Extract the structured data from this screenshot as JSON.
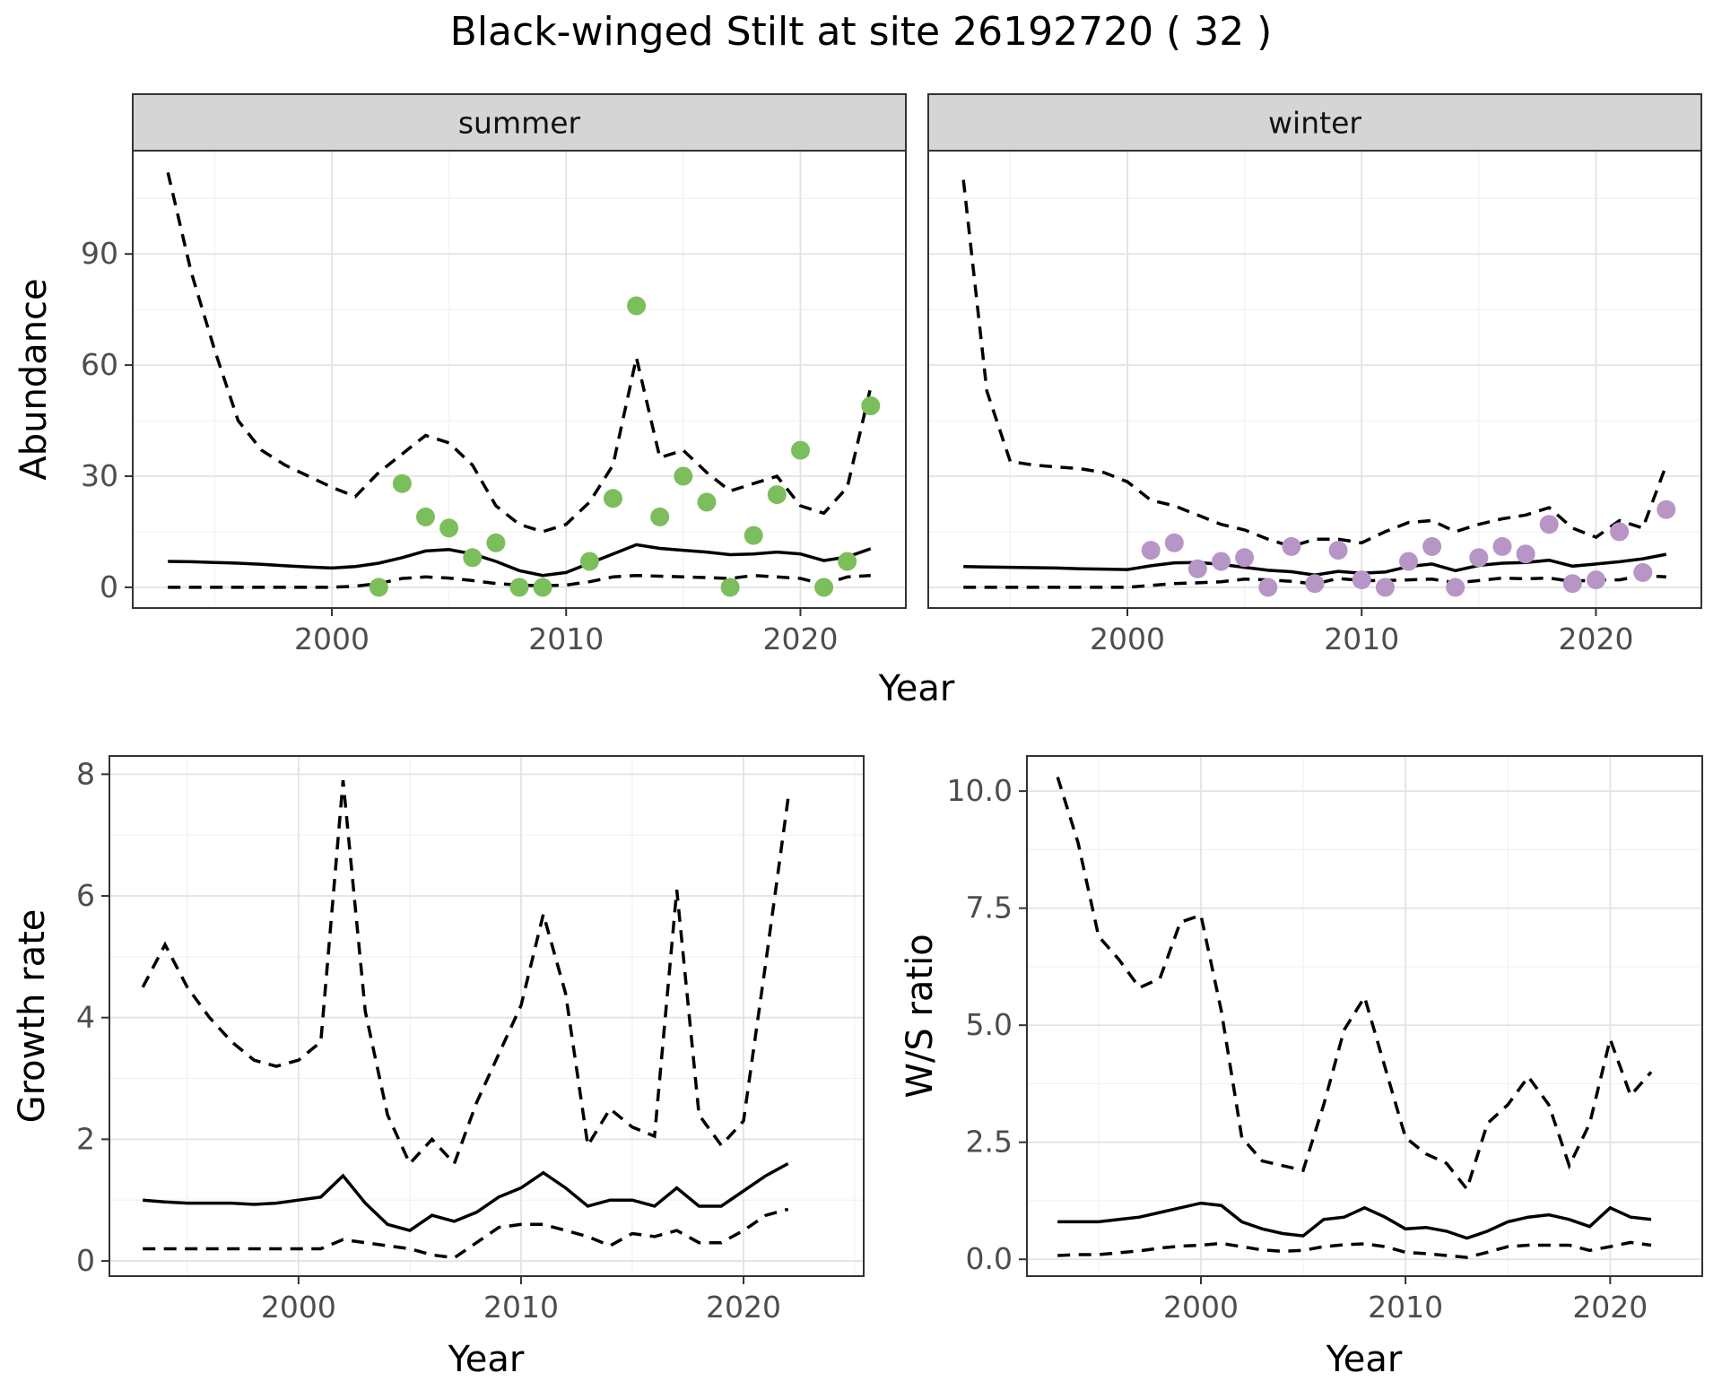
{
  "title": "Black-winged Stilt at site 26192720 ( 32 )",
  "labels": {
    "strip_summer": "summer",
    "strip_winter": "winter",
    "y_top": "Abundance",
    "x_top": "Year",
    "y_growth": "Growth rate",
    "x_growth": "Year",
    "y_ratio": "W/S ratio",
    "x_ratio": "Year"
  },
  "colors": {
    "summer_points": "#7bbe5b",
    "winter_points": "#b795c7",
    "line": "#000000",
    "panel_bg": "#ffffff",
    "grid_major": "#e3e3e3",
    "grid_minor": "#f1f1f1",
    "panel_border": "#333333",
    "strip_bg": "#d5d5d5",
    "tick_label": "#4d4d4d",
    "tick_mark": "#333333"
  },
  "chart_data": {
    "type": "line",
    "description": "Four-panel population model figure: observed abundance points with modelled mean (solid) and 95% CI (dashed) for summer and winter facets, plus growth rate and winter/summer ratio panels.",
    "panels": [
      {
        "id": "abundance_summer",
        "facet_label": "summer",
        "xlabel": "Year",
        "ylabel": "Abundance",
        "xlim": [
          1991.5,
          2024.5
        ],
        "ylim": [
          -5.6,
          117.9
        ],
        "xticks": [
          2000,
          2010,
          2020
        ],
        "xtick_labels": [
          "2000",
          "2010",
          "2020"
        ],
        "xticks_minor": [
          1995,
          2005,
          2015
        ],
        "yticks": [
          0,
          30,
          60,
          90
        ],
        "ytick_labels": [
          "0",
          "30",
          "60",
          "90"
        ],
        "yticks_minor": [
          15,
          45,
          75,
          105
        ],
        "years": [
          1993,
          1994,
          1995,
          1996,
          1997,
          1998,
          1999,
          2000,
          2001,
          2002,
          2003,
          2004,
          2005,
          2006,
          2007,
          2008,
          2009,
          2010,
          2011,
          2012,
          2013,
          2014,
          2015,
          2016,
          2017,
          2018,
          2019,
          2020,
          2021,
          2022,
          2023
        ],
        "series": [
          {
            "name": "upper_ci",
            "style": "dashed",
            "values": [
              112,
              85,
              64,
              45,
              37,
              33,
              30,
              27,
              24.5,
              31,
              36,
              41,
              39,
              33,
              22,
              17,
              15,
              17,
              23,
              33,
              62,
              35,
              37,
              31,
              26,
              28,
              30,
              22,
              20,
              27,
              54
            ]
          },
          {
            "name": "mean",
            "style": "solid",
            "values": [
              7.0,
              6.9,
              6.7,
              6.5,
              6.2,
              5.8,
              5.5,
              5.2,
              5.6,
              6.5,
              8.0,
              9.8,
              10.2,
              9.0,
              7.0,
              4.5,
              3.2,
              4.0,
              6.5,
              9.0,
              11.5,
              10.5,
              10.0,
              9.5,
              8.8,
              9.0,
              9.5,
              9.0,
              7.2,
              8.2,
              10.4
            ]
          },
          {
            "name": "lower_ci",
            "style": "dashed",
            "values": [
              0,
              0,
              0,
              0,
              0,
              0,
              0,
              0,
              0.3,
              1.0,
              2.4,
              2.8,
              2.5,
              1.8,
              1.0,
              0.6,
              0.4,
              0.6,
              1.5,
              2.8,
              3.2,
              3.0,
              2.8,
              2.6,
              2.4,
              3.2,
              2.8,
              2.4,
              0.8,
              2.8,
              3.2
            ]
          }
        ],
        "points": {
          "name": "observed_abundance_summer",
          "color_key": "summer_points",
          "years": [
            2002,
            2003,
            2004,
            2005,
            2006,
            2007,
            2008,
            2009,
            2011,
            2012,
            2013,
            2014,
            2015,
            2016,
            2017,
            2018,
            2019,
            2020,
            2021,
            2022,
            2023
          ],
          "values": [
            0,
            28,
            19,
            16,
            8,
            12,
            0,
            0,
            7,
            24,
            76,
            19,
            30,
            23,
            0,
            14,
            25,
            37,
            0,
            7,
            49
          ]
        }
      },
      {
        "id": "abundance_winter",
        "facet_label": "winter",
        "xlabel": "Year",
        "ylabel": "Abundance",
        "xlim": [
          1991.5,
          2024.5
        ],
        "ylim": [
          -5.6,
          117.9
        ],
        "xticks": [
          2000,
          2010,
          2020
        ],
        "xtick_labels": [
          "2000",
          "2010",
          "2020"
        ],
        "xticks_minor": [
          1995,
          2005,
          2015
        ],
        "yticks": [
          0,
          30,
          60,
          90
        ],
        "ytick_labels": [],
        "yticks_minor": [
          15,
          45,
          75,
          105
        ],
        "years": [
          1993,
          1994,
          1995,
          1996,
          1997,
          1998,
          1999,
          2000,
          2001,
          2002,
          2003,
          2004,
          2005,
          2006,
          2007,
          2008,
          2009,
          2010,
          2011,
          2012,
          2013,
          2014,
          2015,
          2016,
          2017,
          2018,
          2019,
          2020,
          2021,
          2022,
          2023
        ],
        "series": [
          {
            "name": "upper_ci",
            "style": "dashed",
            "values": [
              110,
              53,
              34,
              33,
              32.5,
              32,
              31,
              28.5,
              23.5,
              22,
              19.5,
              17,
              15.5,
              13,
              11,
              13,
              13,
              12,
              15,
              17.5,
              18,
              15,
              17,
              18.5,
              19.5,
              21.5,
              16,
              13.5,
              18,
              16,
              33
            ]
          },
          {
            "name": "mean",
            "style": "solid",
            "values": [
              5.6,
              5.5,
              5.4,
              5.3,
              5.2,
              5.0,
              4.9,
              4.8,
              5.8,
              6.6,
              6.7,
              6.2,
              5.4,
              4.6,
              4.2,
              3.3,
              4.3,
              3.8,
              4.1,
              5.6,
              6.3,
              4.5,
              5.9,
              6.5,
              6.7,
              7.3,
              5.7,
              6.3,
              6.9,
              7.7,
              8.9
            ]
          },
          {
            "name": "lower_ci",
            "style": "dashed",
            "values": [
              0,
              0,
              0,
              0,
              0,
              0,
              0,
              0,
              0.5,
              1.0,
              1.2,
              1.5,
              2.2,
              2.0,
              1.6,
              0.9,
              2.4,
              1.8,
              1.8,
              2.0,
              2.2,
              1.2,
              1.8,
              2.5,
              2.3,
              2.5,
              1.6,
              2.0,
              2.0,
              3.2,
              2.8
            ]
          }
        ],
        "points": {
          "name": "observed_abundance_winter",
          "color_key": "winter_points",
          "years": [
            2001,
            2002,
            2003,
            2004,
            2005,
            2006,
            2007,
            2008,
            2009,
            2010,
            2011,
            2012,
            2013,
            2014,
            2015,
            2016,
            2017,
            2018,
            2019,
            2020,
            2021,
            2022,
            2023
          ],
          "values": [
            10,
            12,
            5,
            7,
            8,
            0,
            11,
            1,
            10,
            2,
            0,
            7,
            11,
            0,
            8,
            11,
            9,
            17,
            1,
            2,
            15,
            4,
            21
          ]
        }
      },
      {
        "id": "growth_rate",
        "facet_label": null,
        "xlabel": "Year",
        "ylabel": "Growth rate",
        "xlim": [
          1991.5,
          2025.4
        ],
        "ylim": [
          -0.25,
          8.3
        ],
        "xticks": [
          2000,
          2010,
          2020
        ],
        "xtick_labels": [
          "2000",
          "2010",
          "2020"
        ],
        "xticks_minor": [
          1995,
          2005,
          2015,
          2025
        ],
        "yticks": [
          0,
          2,
          4,
          6,
          8
        ],
        "ytick_labels": [
          "0",
          "2",
          "4",
          "6",
          "8"
        ],
        "yticks_minor": [
          1,
          3,
          5,
          7
        ],
        "years": [
          1993,
          1994,
          1995,
          1996,
          1997,
          1998,
          1999,
          2000,
          2001,
          2002,
          2003,
          2004,
          2005,
          2006,
          2007,
          2008,
          2009,
          2010,
          2011,
          2012,
          2013,
          2014,
          2015,
          2016,
          2017,
          2018,
          2019,
          2020,
          2021,
          2022
        ],
        "series": [
          {
            "name": "upper_ci",
            "style": "dashed",
            "values": [
              4.5,
              5.2,
              4.5,
              4.0,
              3.6,
              3.3,
              3.2,
              3.3,
              3.6,
              7.9,
              4.1,
              2.4,
              1.6,
              2.0,
              1.6,
              2.6,
              3.4,
              4.2,
              5.7,
              4.4,
              1.9,
              2.5,
              2.2,
              2.05,
              6.1,
              2.4,
              1.9,
              2.3,
              4.9,
              7.6
            ]
          },
          {
            "name": "mean",
            "style": "solid",
            "values": [
              1.0,
              0.97,
              0.95,
              0.95,
              0.95,
              0.93,
              0.95,
              1.0,
              1.05,
              1.4,
              0.95,
              0.6,
              0.5,
              0.75,
              0.65,
              0.8,
              1.05,
              1.2,
              1.45,
              1.2,
              0.9,
              1.0,
              1.0,
              0.9,
              1.2,
              0.9,
              0.9,
              1.15,
              1.4,
              1.6
            ]
          },
          {
            "name": "lower_ci",
            "style": "dashed",
            "values": [
              0.2,
              0.2,
              0.2,
              0.2,
              0.2,
              0.2,
              0.2,
              0.2,
              0.2,
              0.35,
              0.3,
              0.25,
              0.2,
              0.1,
              0.05,
              0.3,
              0.55,
              0.6,
              0.6,
              0.5,
              0.4,
              0.25,
              0.45,
              0.4,
              0.5,
              0.3,
              0.3,
              0.5,
              0.75,
              0.85
            ]
          }
        ],
        "points": null
      },
      {
        "id": "ws_ratio",
        "facet_label": null,
        "xlabel": "Year",
        "ylabel": "W/S ratio",
        "xlim": [
          1991.5,
          2024.5
        ],
        "ylim": [
          -0.36,
          10.75
        ],
        "xticks": [
          2000,
          2010,
          2020
        ],
        "xtick_labels": [
          "2000",
          "2010",
          "2020"
        ],
        "xticks_minor": [
          1995,
          2005,
          2015
        ],
        "yticks": [
          0,
          2.5,
          5,
          7.5,
          10
        ],
        "ytick_labels": [
          "0.0",
          "2.5",
          "5.0",
          "7.5",
          "10.0"
        ],
        "yticks_minor": [
          1.25,
          3.75,
          6.25,
          8.75
        ],
        "years": [
          1993,
          1994,
          1995,
          1996,
          1997,
          1998,
          1999,
          2000,
          2001,
          2002,
          2003,
          2004,
          2005,
          2006,
          2007,
          2008,
          2009,
          2010,
          2011,
          2012,
          2013,
          2014,
          2015,
          2016,
          2017,
          2018,
          2019,
          2020,
          2021,
          2022
        ],
        "series": [
          {
            "name": "upper_ci",
            "style": "dashed",
            "values": [
              10.3,
              8.9,
              6.9,
              6.4,
              5.8,
              6.0,
              7.2,
              7.35,
              5.3,
              2.6,
              2.1,
              2.0,
              1.9,
              3.3,
              4.9,
              5.6,
              4.1,
              2.6,
              2.25,
              2.05,
              1.5,
              2.9,
              3.3,
              3.9,
              3.3,
              2.0,
              2.9,
              4.7,
              3.5,
              4.0
            ]
          },
          {
            "name": "mean",
            "style": "solid",
            "values": [
              0.8,
              0.8,
              0.8,
              0.85,
              0.9,
              1.0,
              1.1,
              1.2,
              1.15,
              0.8,
              0.65,
              0.55,
              0.5,
              0.85,
              0.9,
              1.1,
              0.9,
              0.65,
              0.68,
              0.6,
              0.45,
              0.6,
              0.8,
              0.9,
              0.95,
              0.85,
              0.7,
              1.1,
              0.9,
              0.85
            ]
          },
          {
            "name": "lower_ci",
            "style": "dashed",
            "values": [
              0.08,
              0.1,
              0.1,
              0.14,
              0.18,
              0.24,
              0.28,
              0.3,
              0.34,
              0.27,
              0.2,
              0.17,
              0.19,
              0.27,
              0.31,
              0.33,
              0.27,
              0.15,
              0.12,
              0.08,
              0.04,
              0.15,
              0.27,
              0.3,
              0.3,
              0.3,
              0.19,
              0.27,
              0.36,
              0.3
            ]
          }
        ],
        "points": null
      }
    ]
  }
}
